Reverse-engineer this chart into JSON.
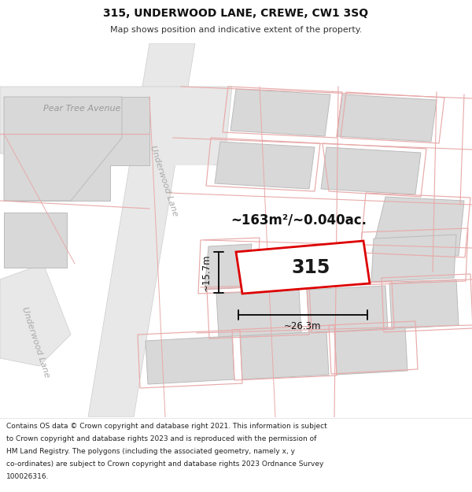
{
  "title": "315, UNDERWOOD LANE, CREWE, CW1 3SQ",
  "subtitle": "Map shows position and indicative extent of the property.",
  "footer_lines": [
    "Contains OS data © Crown copyright and database right 2021. This information is subject",
    "to Crown copyright and database rights 2023 and is reproduced with the permission of",
    "HM Land Registry. The polygons (including the associated geometry, namely x, y",
    "co-ordinates) are subject to Crown copyright and database rights 2023 Ordnance Survey",
    "100026316."
  ],
  "bg_color": "#f7f7f7",
  "road_fill": "#e6e6e6",
  "road_stroke": "#c8c8c8",
  "building_fill": "#d8d8d8",
  "building_stroke": "#bbbbbb",
  "pink_color": "#e8aaaa",
  "red_color": "#dd0000",
  "white_fill": "#ffffff",
  "label_315": "315",
  "area_label": "~163m²/~0.040ac.",
  "dim_h_label": "~15.7m",
  "dim_w_label": "~26.3m",
  "street_label_pear": "Pear Tree Avenue",
  "street_label_under1": "Underwood Lane",
  "street_label_under2": "Underwood Lane",
  "title_fontsize": 10,
  "subtitle_fontsize": 8,
  "footer_fontsize": 6.5,
  "area_fontsize": 12,
  "label_315_fontsize": 17,
  "dim_fontsize": 8.5,
  "street_fontsize": 8
}
